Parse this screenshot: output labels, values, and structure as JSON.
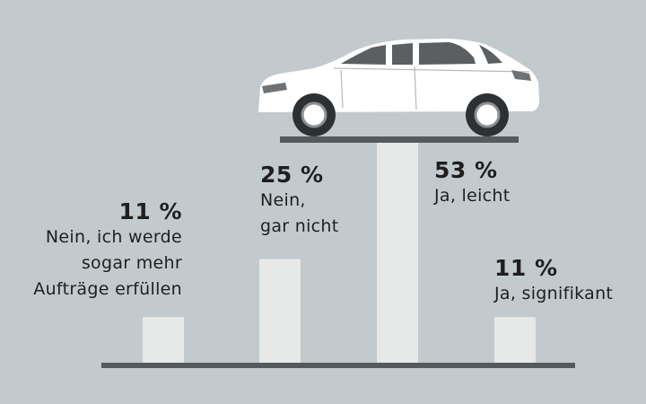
{
  "chart_data": {
    "type": "bar",
    "categories": [
      "Nein, ich werde sogar mehr Aufträge erfüllen",
      "Nein, gar nicht",
      "Ja, leicht",
      "Ja, signifikant"
    ],
    "values": [
      11,
      25,
      53,
      11
    ],
    "value_labels": [
      "11 %",
      "25 %",
      "53 %",
      "11 %"
    ],
    "category_lines": [
      [
        "Nein, ich werde",
        "sogar mehr",
        "Aufträge erfüllen"
      ],
      [
        "Nein,",
        "gar nicht"
      ],
      [
        "Ja, leicht"
      ],
      [
        "Ja, signifikant"
      ]
    ],
    "title": "",
    "xlabel": "",
    "ylabel": "",
    "ylim": [
      0,
      53
    ],
    "grid": false,
    "legend": "none"
  },
  "colors": {
    "background": "#c3cacd",
    "bar": "#e7e8e8",
    "baseline": "#555a5c",
    "text": "#1f1f1f",
    "car": "#ffffff"
  },
  "icons": [
    "car-icon"
  ]
}
